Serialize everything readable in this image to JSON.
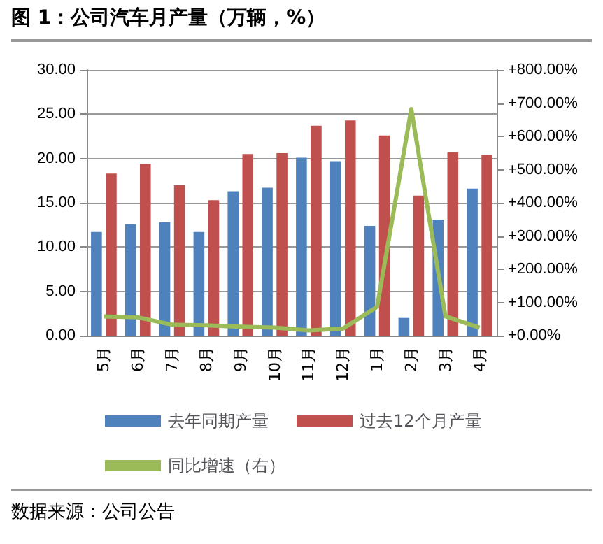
{
  "chart_data": {
    "type": "bar",
    "title": "图 1：公司汽车月产量（万辆，%）",
    "categories": [
      "5月",
      "6月",
      "7月",
      "8月",
      "9月",
      "10月",
      "11月",
      "12月",
      "1月",
      "2月",
      "3月",
      "4月"
    ],
    "series": [
      {
        "name": "去年同期产量",
        "color": "#4f81bd",
        "values": [
          11.7,
          12.6,
          12.8,
          11.7,
          16.3,
          16.7,
          20.1,
          19.7,
          12.4,
          2.0,
          13.1,
          16.6
        ]
      },
      {
        "name": "过去12个月产量",
        "color": "#c0504d",
        "values": [
          18.3,
          19.4,
          17.0,
          15.3,
          20.5,
          20.6,
          23.7,
          24.3,
          22.6,
          15.8,
          20.7,
          20.4
        ]
      },
      {
        "name": "同比增速（右）",
        "type": "line",
        "axis": "y2",
        "color": "#9bbb59",
        "values": [
          58,
          55,
          33,
          31,
          27,
          24,
          16,
          21,
          87,
          682,
          58,
          24
        ]
      }
    ],
    "ylim": [
      0,
      30
    ],
    "yticks": [
      {
        "value": 0,
        "label": "0.00"
      },
      {
        "value": 5,
        "label": "5.00"
      },
      {
        "value": 10,
        "label": "10.00"
      },
      {
        "value": 15,
        "label": "15.00"
      },
      {
        "value": 20,
        "label": "20.00"
      },
      {
        "value": 25,
        "label": "25.00"
      },
      {
        "value": 30,
        "label": "30.00"
      }
    ],
    "y2lim": [
      0,
      800
    ],
    "y2ticks": [
      {
        "value": 0,
        "label": "+0.00%"
      },
      {
        "value": 100,
        "label": "+100.00%"
      },
      {
        "value": 200,
        "label": "+200.00%"
      },
      {
        "value": 300,
        "label": "+300.00%"
      },
      {
        "value": 400,
        "label": "+400.00%"
      },
      {
        "value": 500,
        "label": "+500.00%"
      },
      {
        "value": 600,
        "label": "+600.00%"
      },
      {
        "value": 700,
        "label": "+700.00%"
      },
      {
        "value": 800,
        "label": "+800.00%"
      }
    ],
    "grid": true,
    "legend": "bottom",
    "marker": "none",
    "annotations": [
      "数据来源：公司公告"
    ]
  }
}
